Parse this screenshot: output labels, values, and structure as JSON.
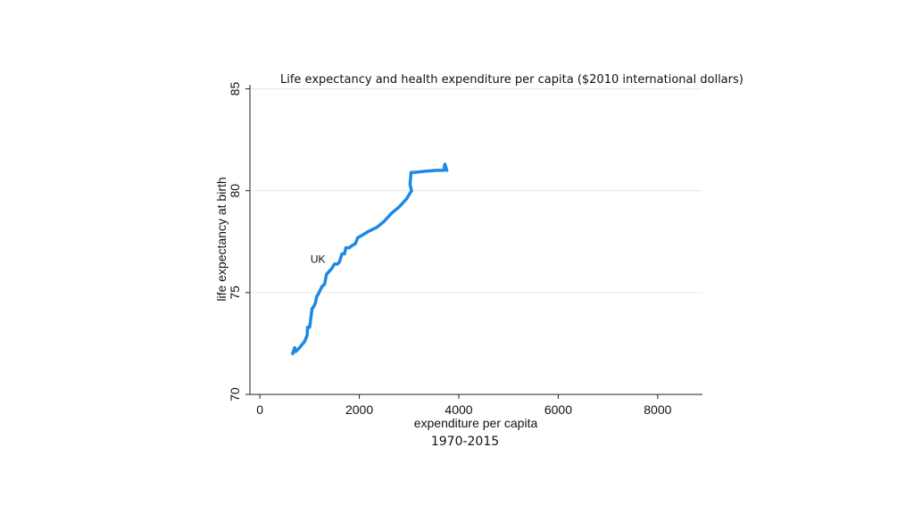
{
  "chart_data": {
    "type": "line",
    "title": "Life expectancy and health expenditure per capita ($2010 international dollars)",
    "xlabel": "expenditure per capita",
    "ylabel": "life expectancy at birth",
    "note": "1970-2015",
    "xlim": [
      -200,
      8900
    ],
    "ylim": [
      70,
      85.2
    ],
    "x_ticks": [
      0,
      2000,
      4000,
      6000,
      8000
    ],
    "y_ticks": [
      70,
      75,
      80,
      85
    ],
    "grid": true,
    "series": [
      {
        "name": "UK",
        "color": "#1e88e5",
        "points": [
          [
            660,
            72.0
          ],
          [
            700,
            72.3
          ],
          [
            720,
            72.1
          ],
          [
            800,
            72.3
          ],
          [
            900,
            72.6
          ],
          [
            950,
            72.9
          ],
          [
            960,
            73.3
          ],
          [
            1000,
            73.3
          ],
          [
            1050,
            74.2
          ],
          [
            1080,
            74.3
          ],
          [
            1120,
            74.5
          ],
          [
            1140,
            74.8
          ],
          [
            1170,
            74.9
          ],
          [
            1250,
            75.3
          ],
          [
            1300,
            75.4
          ],
          [
            1340,
            75.9
          ],
          [
            1380,
            76.0
          ],
          [
            1450,
            76.2
          ],
          [
            1500,
            76.4
          ],
          [
            1560,
            76.4
          ],
          [
            1600,
            76.5
          ],
          [
            1650,
            76.9
          ],
          [
            1700,
            76.9
          ],
          [
            1730,
            77.2
          ],
          [
            1800,
            77.2
          ],
          [
            1850,
            77.3
          ],
          [
            1920,
            77.4
          ],
          [
            1970,
            77.7
          ],
          [
            2050,
            77.8
          ],
          [
            2180,
            78.0
          ],
          [
            2350,
            78.2
          ],
          [
            2500,
            78.5
          ],
          [
            2650,
            78.9
          ],
          [
            2800,
            79.2
          ],
          [
            2950,
            79.6
          ],
          [
            3050,
            80.0
          ],
          [
            3020,
            80.3
          ],
          [
            3040,
            80.9
          ],
          [
            3100,
            80.9
          ],
          [
            3300,
            80.95
          ],
          [
            3550,
            81.0
          ],
          [
            3700,
            81.0
          ],
          [
            3720,
            81.3
          ],
          [
            3760,
            81.0
          ]
        ]
      }
    ]
  }
}
